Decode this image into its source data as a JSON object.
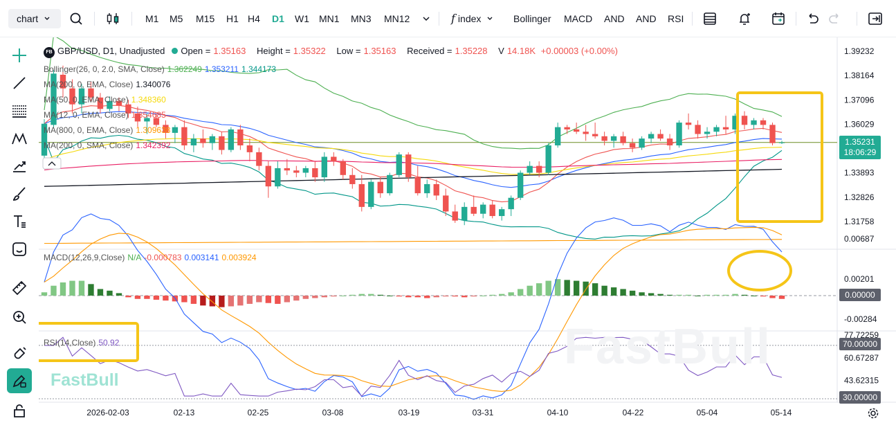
{
  "toolbar": {
    "chart_select": "chart",
    "timeframes": [
      "M1",
      "M5",
      "M15",
      "H1",
      "H4",
      "D1",
      "W1",
      "MN1",
      "MN3",
      "MN12"
    ],
    "active_timeframe": "D1",
    "indicators_label": "index",
    "studies": [
      "Bollinger",
      "MACD",
      "AND",
      "AND",
      "RSI"
    ]
  },
  "legend": {
    "symbol": "GBP/USD, D1, Unadjusted",
    "badge": "FB",
    "open_label": "Open =",
    "open": "1.35163",
    "high_label": "Height =",
    "high": "1.35322",
    "low_label": "Low =",
    "low": "1.35163",
    "close_label": "Received =",
    "close": "1.35228",
    "volume_label": "V",
    "volume": "14.18K",
    "change": "+0.00003 (+0.00%)",
    "indicators": [
      {
        "label": "Bollinger(26, 0, 2.0, SMA, Close)",
        "values": [
          "1.362249",
          "1.353211",
          "1.344173"
        ],
        "colors": [
          "#4caf50",
          "#2962ff",
          "#009688"
        ]
      },
      {
        "label": "MA(200, 0, EMA, Close)",
        "values": [
          "1.340076"
        ],
        "colors": [
          "#131722"
        ]
      },
      {
        "label": "MA(50, 0, EMA, Close)",
        "values": [
          "1.348360"
        ],
        "colors": [
          "#f5d90a"
        ]
      },
      {
        "label": "MA(12, 0, EMA, Close)",
        "values": [
          "1.354685"
        ],
        "colors": [
          "#ef5350"
        ]
      },
      {
        "label": "MA(800, 0, EMA, Close)",
        "values": [
          "1.309638"
        ],
        "colors": [
          "#ff9800"
        ]
      },
      {
        "label": "MA(200, 0, SMA, Close)",
        "values": [
          "1.342392"
        ],
        "colors": [
          "#e91e63"
        ]
      }
    ],
    "macd_label": "MACD(12,26,9,Close)",
    "macd_values": [
      "N/A",
      "-0.000783",
      "0.003141",
      "0.003924"
    ],
    "rsi_label": "RSI(14,Close)",
    "rsi_value": "50.92"
  },
  "price_axis": [
    "1.39232",
    "1.38164",
    "1.37096",
    "1.36029",
    "1.34961",
    "1.33893",
    "1.32826",
    "1.31758"
  ],
  "price_tag": {
    "price": "1.35231",
    "countdown": "18:06:29"
  },
  "macd_axis": [
    "0.00687",
    "0.00201",
    "-0.00284"
  ],
  "macd_tag": "0.00000",
  "rsi_axis": [
    "77.72259",
    "60.67287",
    "43.62315"
  ],
  "rsi_tags": [
    "70.00000",
    "30.00000"
  ],
  "date_axis": [
    "2026-02-03",
    "02-13",
    "02-25",
    "03-08",
    "03-19",
    "03-31",
    "04-10",
    "04-22",
    "05-04",
    "05-14"
  ],
  "watermark": "FastBull",
  "logo": "FastBull",
  "colors": {
    "up": "#22ab94",
    "down": "#ef5350",
    "highlight": "#f5c518"
  },
  "candles": [
    [
      1.3465,
      1.3625,
      1.344,
      1.3605
    ],
    [
      1.36,
      1.384,
      1.359,
      1.3825
    ],
    [
      1.382,
      1.386,
      1.372,
      1.376
    ],
    [
      1.376,
      1.38,
      1.365,
      1.369
    ],
    [
      1.369,
      1.378,
      1.365,
      1.376
    ],
    [
      1.376,
      1.379,
      1.37,
      1.372
    ],
    [
      1.372,
      1.374,
      1.365,
      1.367
    ],
    [
      1.367,
      1.3725,
      1.366,
      1.3705
    ],
    [
      1.3705,
      1.372,
      1.366,
      1.3685
    ],
    [
      1.369,
      1.371,
      1.363,
      1.365
    ],
    [
      1.365,
      1.368,
      1.359,
      1.3615
    ],
    [
      1.3615,
      1.365,
      1.356,
      1.363
    ],
    [
      1.363,
      1.365,
      1.359,
      1.36
    ],
    [
      1.36,
      1.362,
      1.354,
      1.3565
    ],
    [
      1.3565,
      1.36,
      1.352,
      1.359
    ],
    [
      1.359,
      1.362,
      1.349,
      1.351
    ],
    [
      1.351,
      1.356,
      1.348,
      1.354
    ],
    [
      1.354,
      1.358,
      1.35,
      1.352
    ],
    [
      1.352,
      1.356,
      1.349,
      1.355
    ],
    [
      1.355,
      1.357,
      1.347,
      1.349
    ],
    [
      1.349,
      1.359,
      1.348,
      1.358
    ],
    [
      1.358,
      1.36,
      1.349,
      1.351
    ],
    [
      1.351,
      1.354,
      1.344,
      1.348
    ],
    [
      1.348,
      1.35,
      1.34,
      1.342
    ],
    [
      1.342,
      1.344,
      1.328,
      1.333
    ],
    [
      1.333,
      1.344,
      1.332,
      1.341
    ],
    [
      1.341,
      1.345,
      1.338,
      1.34
    ],
    [
      1.34,
      1.342,
      1.337,
      1.339
    ],
    [
      1.339,
      1.342,
      1.337,
      1.341
    ],
    [
      1.341,
      1.344,
      1.335,
      1.337
    ],
    [
      1.337,
      1.348,
      1.335,
      1.346
    ],
    [
      1.346,
      1.348,
      1.342,
      1.344
    ],
    [
      1.344,
      1.345,
      1.336,
      1.338
    ],
    [
      1.338,
      1.341,
      1.332,
      1.334
    ],
    [
      1.334,
      1.338,
      1.322,
      1.324
    ],
    [
      1.324,
      1.336,
      1.323,
      1.335
    ],
    [
      1.335,
      1.337,
      1.328,
      1.33
    ],
    [
      1.33,
      1.339,
      1.329,
      1.338
    ],
    [
      1.338,
      1.348,
      1.337,
      1.347
    ],
    [
      1.347,
      1.348,
      1.335,
      1.337
    ],
    [
      1.337,
      1.342,
      1.329,
      1.33
    ],
    [
      1.33,
      1.336,
      1.328,
      1.334
    ],
    [
      1.334,
      1.336,
      1.327,
      1.329
    ],
    [
      1.329,
      1.332,
      1.32,
      1.322
    ],
    [
      1.322,
      1.325,
      1.317,
      1.318
    ],
    [
      1.318,
      1.326,
      1.316,
      1.324
    ],
    [
      1.324,
      1.329,
      1.32,
      1.321
    ],
    [
      1.321,
      1.326,
      1.319,
      1.325
    ],
    [
      1.325,
      1.327,
      1.319,
      1.32
    ],
    [
      1.32,
      1.324,
      1.318,
      1.323
    ],
    [
      1.323,
      1.329,
      1.32,
      1.328
    ],
    [
      1.328,
      1.34,
      1.327,
      1.339
    ],
    [
      1.339,
      1.344,
      1.338,
      1.342
    ],
    [
      1.342,
      1.344,
      1.337,
      1.339
    ],
    [
      1.339,
      1.352,
      1.338,
      1.351
    ],
    [
      1.351,
      1.361,
      1.35,
      1.359
    ],
    [
      1.359,
      1.36,
      1.356,
      1.358
    ],
    [
      1.358,
      1.361,
      1.356,
      1.357
    ],
    [
      1.357,
      1.36,
      1.353,
      1.356
    ],
    [
      1.356,
      1.361,
      1.354,
      1.355
    ],
    [
      1.355,
      1.357,
      1.351,
      1.353
    ],
    [
      1.353,
      1.356,
      1.35,
      1.355
    ],
    [
      1.355,
      1.357,
      1.351,
      1.352
    ],
    [
      1.352,
      1.354,
      1.348,
      1.35
    ],
    [
      1.35,
      1.355,
      1.349,
      1.354
    ],
    [
      1.354,
      1.357,
      1.352,
      1.356
    ],
    [
      1.356,
      1.358,
      1.353,
      1.354
    ],
    [
      1.354,
      1.356,
      1.349,
      1.351
    ],
    [
      1.351,
      1.362,
      1.35,
      1.361
    ],
    [
      1.361,
      1.365,
      1.358,
      1.36
    ],
    [
      1.36,
      1.362,
      1.354,
      1.356
    ],
    [
      1.356,
      1.359,
      1.354,
      1.357
    ],
    [
      1.357,
      1.36,
      1.355,
      1.359
    ],
    [
      1.359,
      1.364,
      1.356,
      1.358
    ],
    [
      1.358,
      1.365,
      1.356,
      1.364
    ],
    [
      1.364,
      1.366,
      1.358,
      1.36
    ],
    [
      1.36,
      1.363,
      1.358,
      1.362
    ],
    [
      1.362,
      1.363,
      1.358,
      1.36
    ],
    [
      1.36,
      1.361,
      1.351,
      1.352
    ],
    [
      1.352,
      1.353,
      1.3516,
      1.3523
    ]
  ],
  "macd_hist": [
    0.0004,
    0.0012,
    0.0016,
    0.0018,
    0.0018,
    0.0014,
    0.0008,
    0.0006,
    0.0003,
    -0.0002,
    -0.0004,
    -0.0004,
    -0.0005,
    -0.0006,
    -0.0007,
    -0.0008,
    -0.001,
    -0.0012,
    -0.0013,
    -0.0014,
    -0.0013,
    -0.0012,
    -0.001,
    -0.0008,
    -0.0009,
    -0.001,
    -0.0008,
    -0.0006,
    -0.0004,
    -0.0003,
    -0.0002,
    -0.0001,
    0,
    0.0001,
    0.0002,
    0.0002,
    0.0001,
    0,
    -0.0001,
    -0.0002,
    -0.0002,
    -0.0003,
    -0.0002,
    -0.0001,
    -0.0001,
    -0.0002,
    -0.0001,
    0,
    0.0001,
    0.0002,
    0.0004,
    0.0008,
    0.0012,
    0.0015,
    0.0018,
    0.002,
    0.0019,
    0.0018,
    0.0017,
    0.0015,
    0.0012,
    0.001,
    0.0008,
    0.0006,
    0.0004,
    0.0003,
    0.0002,
    0.0001,
    0.0001,
    0.0001,
    0,
    0.0001,
    0.0001,
    0.0001,
    0.0002,
    0.0001,
    0,
    -0.0001,
    -0.0003,
    -0.0004
  ]
}
